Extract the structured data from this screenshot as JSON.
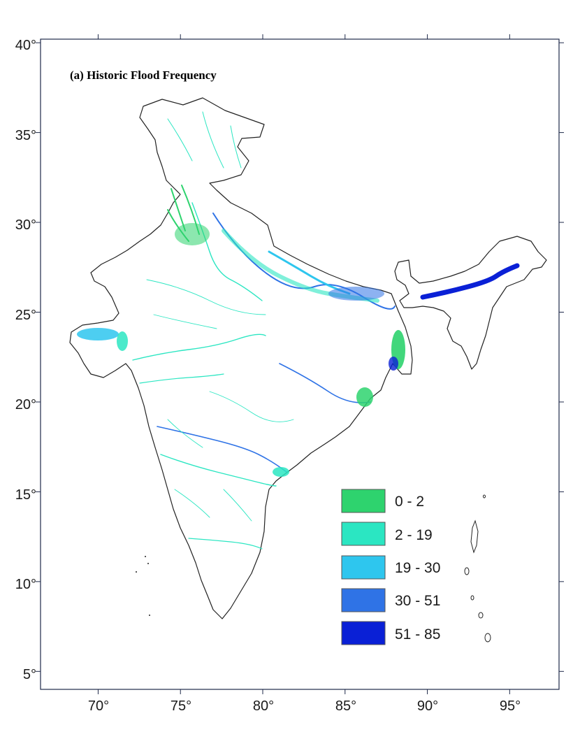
{
  "map": {
    "title": "(a) Historic Flood Frequency",
    "x_ticks": [
      "70°",
      "75°",
      "80°",
      "85°",
      "90°",
      "95°"
    ],
    "y_ticks": [
      "40°",
      "35°",
      "30°",
      "25°",
      "20°",
      "15°",
      "10°",
      "5°"
    ],
    "lon_range": [
      66.5,
      98
    ],
    "lat_range": [
      4,
      40.2
    ],
    "x_tick_values": [
      70,
      75,
      80,
      85,
      90,
      95
    ],
    "y_tick_values": [
      40,
      35,
      30,
      25,
      20,
      15,
      10,
      5
    ]
  },
  "legend": {
    "items": [
      {
        "label": "0 - 2",
        "color": "#2ed36e"
      },
      {
        "label": "2 - 19",
        "color": "#2be6c2"
      },
      {
        "label": "19 - 30",
        "color": "#2ec6ee"
      },
      {
        "label": "30 - 51",
        "color": "#2f73e6"
      },
      {
        "label": "51 - 85",
        "color": "#0a20d6"
      }
    ]
  },
  "colors": {
    "outline": "#222222",
    "river_low": "#2ed36e",
    "river_mid": "#2be6c2",
    "river_high": "#2f73e6",
    "flood_extreme": "#0a20d6"
  }
}
